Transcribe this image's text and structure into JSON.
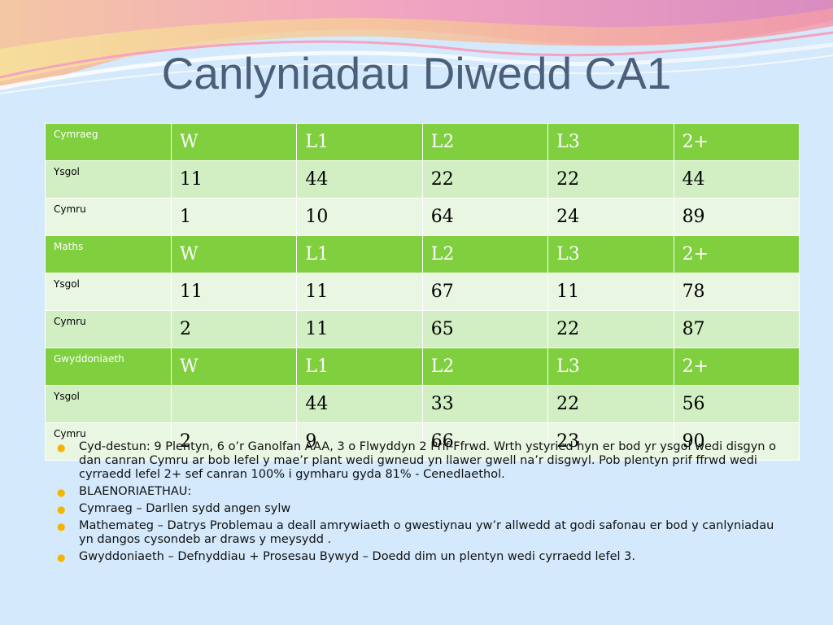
{
  "title": "Canlyniadau Diwedd CA1",
  "table": {
    "rows": [
      {
        "kind": "head",
        "label": "Cymraeg",
        "cells": [
          "W",
          "L1",
          "L2",
          "L3",
          "2+"
        ]
      },
      {
        "kind": "odd",
        "label": "Ysgol",
        "cells": [
          "11",
          "44",
          "22",
          "22",
          "44"
        ]
      },
      {
        "kind": "even",
        "label": "Cymru",
        "cells": [
          "1",
          "10",
          "64",
          "24",
          "89"
        ]
      },
      {
        "kind": "head",
        "label": "Maths",
        "cells": [
          "W",
          "L1",
          "L2",
          "L3",
          "2+"
        ]
      },
      {
        "kind": "even",
        "label": "Ysgol",
        "cells": [
          "11",
          "11",
          "67",
          "11",
          "78"
        ]
      },
      {
        "kind": "odd",
        "label": "Cymru",
        "cells": [
          "2",
          "11",
          "65",
          "22",
          "87"
        ]
      },
      {
        "kind": "head",
        "label": "Gwyddoniaeth",
        "cells": [
          "W",
          "L1",
          "L2",
          "L3",
          "2+"
        ]
      },
      {
        "kind": "odd",
        "label": "Ysgol",
        "cells": [
          "",
          "44",
          "33",
          "22",
          "56"
        ]
      },
      {
        "kind": "even",
        "label": "Cymru",
        "cells": [
          "2",
          "9",
          "66",
          "23",
          "90"
        ]
      }
    ]
  },
  "notes": [
    "Cyd-destun: 9 Plentyn, 6 o’r Ganolfan AAA, 3 o Flwyddyn 2 Prif-Ffrwd.  Wrth ystyried hyn er bod yr ysgol wedi disgyn o dan canran Cymru ar bob lefel y mae’r plant wedi gwneud yn llawer gwell na’r disgwyl.  Pob plentyn prif ffrwd wedi cyrraedd lefel 2+ sef canran 100% i gymharu gyda 81% - Cenedlaethol.",
    "BLAENORIAETHAU:",
    "Cymraeg – Darllen sydd angen sylw",
    "Mathemateg – Datrys Problemau a deall amrywiaeth o gwestiynau yw’r allwedd at godi safonau er bod y canlyniadau yn dangos cysondeb ar draws y meysydd .",
    "Gwyddoniaeth – Defnyddiau + Prosesau Bywyd – Doedd dim un plentyn wedi cyrraedd lefel 3."
  ],
  "colors": {
    "header_row": "#7fcf3f",
    "row_light": "#e9f6e2",
    "row_mid": "#d2efc4",
    "title": "#4a5f7a",
    "bullet": "#f5b400",
    "background": "#d4e9fb"
  },
  "icons": {
    "bullet": "bullet-dot-icon"
  }
}
